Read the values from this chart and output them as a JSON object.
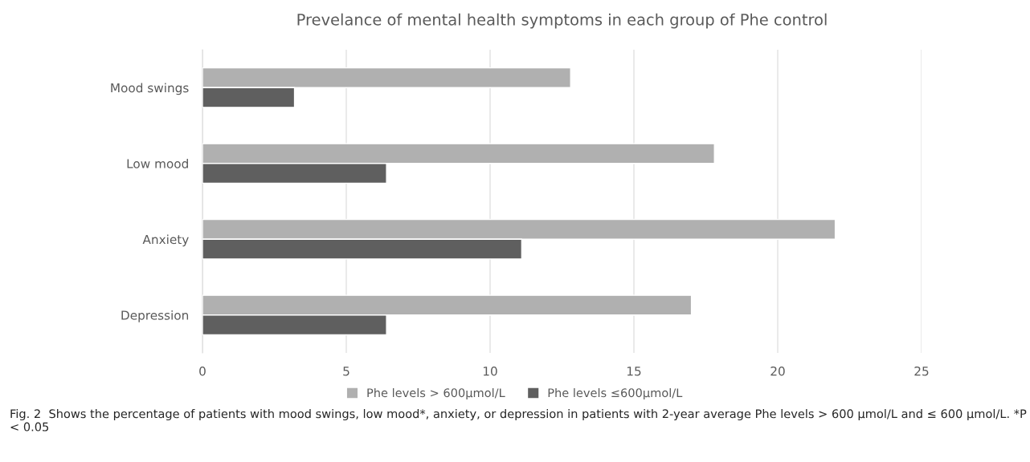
{
  "chart_data": {
    "type": "bar",
    "orientation": "horizontal",
    "title": "Prevelance of mental health symptoms in each group of Phe control",
    "categories": [
      "Mood swings",
      "Low mood",
      "Anxiety",
      "Depression"
    ],
    "series": [
      {
        "name": "Phe levels > 600μmol/L",
        "color": "#b0b0b0",
        "values": [
          12.8,
          17.8,
          22.0,
          17.0
        ]
      },
      {
        "name": "Phe levels ≤600μmol/L",
        "color": "#5f5f5f",
        "values": [
          3.2,
          6.4,
          11.1,
          6.4
        ]
      }
    ],
    "xlim": [
      0,
      25
    ],
    "xticks": [
      0,
      5,
      10,
      15,
      20,
      25
    ],
    "grid": "x",
    "legend": "bottom",
    "annotations": [
      "Fig. 2  Shows the percentage of patients with mood swings, low mood*, anxiety, or depression in patients with 2-year average Phe levels > 600 μmol/L and ≤ 600 μmol/L. *P < 0.05"
    ]
  }
}
